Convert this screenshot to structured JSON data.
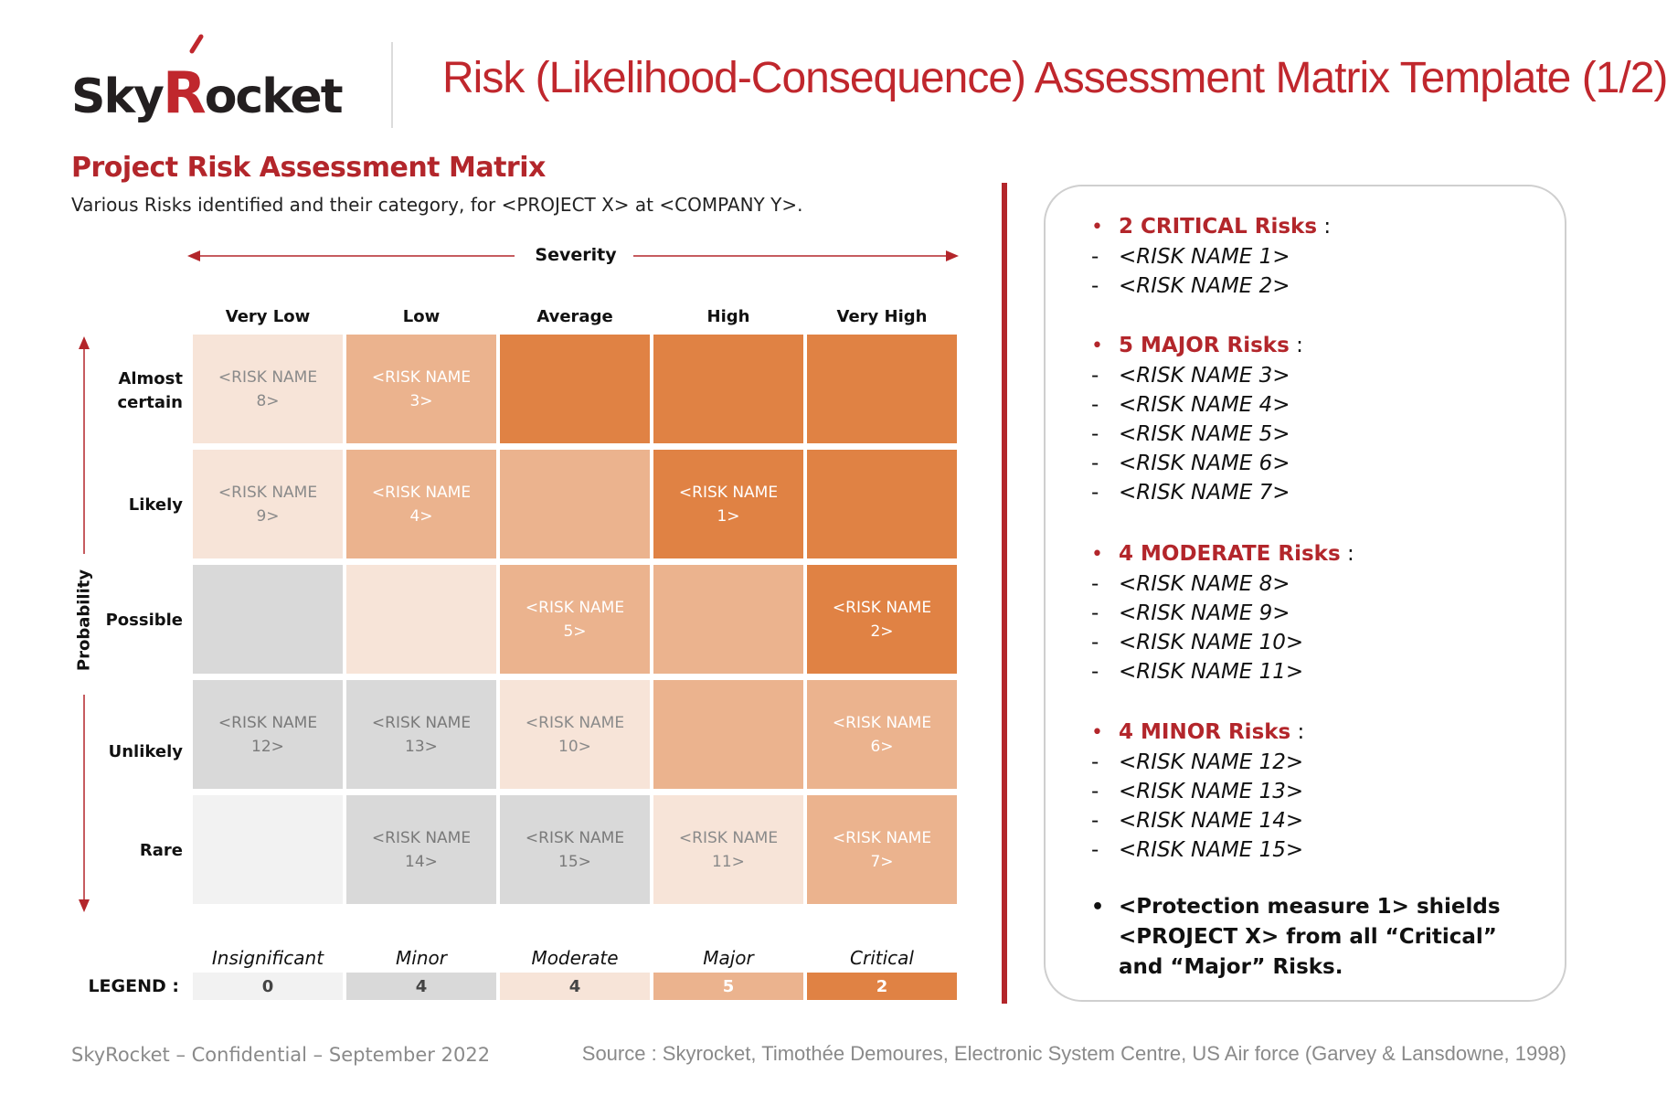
{
  "brand": {
    "logo_text_sky": "Sky",
    "logo_text_rocket_r": "R",
    "logo_text_ocket": "ocket",
    "accent_color": "#c0272d",
    "dark_color": "#231f20"
  },
  "header": {
    "title": "Risk (Likelihood-Consequence) Assessment Matrix Template (1/2)"
  },
  "section": {
    "title": "Project Risk Assessment Matrix",
    "description": "Various Risks identified and their category, for <PROJECT X> at <COMPANY Y>."
  },
  "matrix": {
    "severity_label": "Severity",
    "probability_label": "Probability",
    "columns": [
      "Very Low",
      "Low",
      "Average",
      "High",
      "Very High"
    ],
    "rows": [
      "Almost certain",
      "Likely",
      "Possible",
      "Unlikely",
      "Rare"
    ],
    "cells": [
      [
        {
          "text": "<RISK NAME 8>",
          "level": "moderate"
        },
        {
          "text": "<RISK NAME 3>",
          "level": "major"
        },
        {
          "text": "",
          "level": "critical"
        },
        {
          "text": "",
          "level": "critical"
        },
        {
          "text": "",
          "level": "critical"
        }
      ],
      [
        {
          "text": "<RISK NAME 9>",
          "level": "moderate"
        },
        {
          "text": "<RISK NAME 4>",
          "level": "major"
        },
        {
          "text": "",
          "level": "major"
        },
        {
          "text": "<RISK NAME 1>",
          "level": "critical"
        },
        {
          "text": "",
          "level": "critical"
        }
      ],
      [
        {
          "text": "",
          "level": "minor"
        },
        {
          "text": "",
          "level": "moderate"
        },
        {
          "text": "<RISK NAME 5>",
          "level": "major"
        },
        {
          "text": "",
          "level": "major"
        },
        {
          "text": "<RISK NAME 2>",
          "level": "critical"
        }
      ],
      [
        {
          "text": "<RISK NAME 12>",
          "level": "minor"
        },
        {
          "text": "<RISK NAME 13>",
          "level": "minor"
        },
        {
          "text": "<RISK NAME 10>",
          "level": "moderate"
        },
        {
          "text": "",
          "level": "major"
        },
        {
          "text": "<RISK NAME 6>",
          "level": "major"
        }
      ],
      [
        {
          "text": "",
          "level": "insignificant"
        },
        {
          "text": "<RISK NAME 14>",
          "level": "minor"
        },
        {
          "text": "<RISK NAME 15>",
          "level": "minor"
        },
        {
          "text": "<RISK NAME 11>",
          "level": "moderate"
        },
        {
          "text": "<RISK NAME 7>",
          "level": "major"
        }
      ]
    ]
  },
  "levels": {
    "insignificant": {
      "bg": "#f2f2f2",
      "fg": "#111111"
    },
    "minor": {
      "bg": "#d9d9d9",
      "fg": "#7a7a7a"
    },
    "moderate": {
      "bg": "#f7e4d8",
      "fg": "#8a8a8a"
    },
    "major": {
      "bg": "#ebb38e",
      "fg": "#ffffff"
    },
    "critical": {
      "bg": "#e08244",
      "fg": "#ffffff"
    }
  },
  "legend": {
    "label": "LEGEND :",
    "items": [
      {
        "category": "Insignificant",
        "count": "0",
        "level": "insignificant"
      },
      {
        "category": "Minor",
        "count": "4",
        "level": "minor"
      },
      {
        "category": "Moderate",
        "count": "4",
        "level": "moderate"
      },
      {
        "category": "Major",
        "count": "5",
        "level": "major"
      },
      {
        "category": "Critical",
        "count": "2",
        "level": "critical"
      }
    ]
  },
  "summary": {
    "groups": [
      {
        "heading": "2 CRITICAL Risks",
        "suffix": " :",
        "items": [
          "<RISK NAME 1>",
          "<RISK NAME 2>"
        ]
      },
      {
        "heading": "5 MAJOR Risks",
        "suffix": " :",
        "items": [
          "<RISK NAME 3>",
          "<RISK NAME 4>",
          "<RISK NAME 5>",
          "<RISK NAME 6>",
          "<RISK NAME 7>"
        ]
      },
      {
        "heading": "4 MODERATE Risks",
        "suffix": " :",
        "items": [
          "<RISK NAME 8>",
          "<RISK NAME 9>",
          "<RISK NAME 10>",
          "<RISK NAME 11>"
        ]
      },
      {
        "heading": "4 MINOR Risks",
        "suffix": " :",
        "items": [
          "<RISK NAME 12>",
          "<RISK NAME 13>",
          "<RISK NAME 14>",
          "<RISK NAME 15>"
        ]
      }
    ],
    "protection": "<Protection measure 1> shields <PROJECT X> from all “Critical” and “Major” Risks."
  },
  "footer": {
    "left": "SkyRocket – Confidential – September 2022",
    "right": "Source : Skyrocket, Timothée Demoures, Electronic System Centre, US Air force (Garvey & Lansdowne, 1998)"
  }
}
